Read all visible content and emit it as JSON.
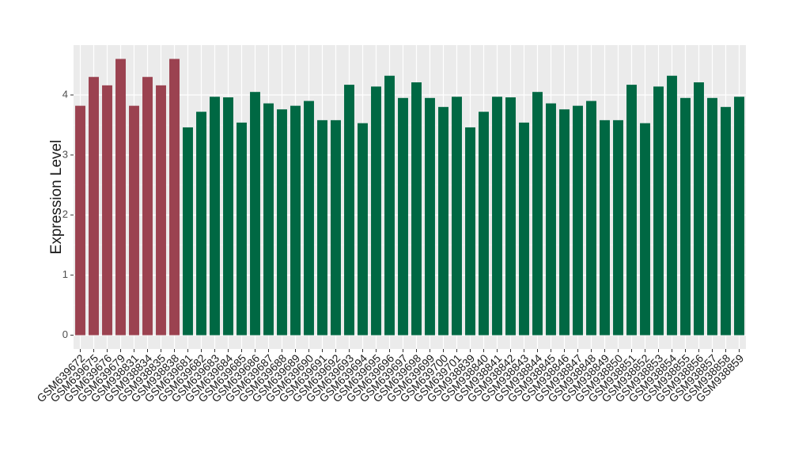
{
  "chart_data": {
    "type": "bar",
    "y_label": "Expression Level",
    "categories": [
      "GSM639672",
      "GSM639675",
      "GSM639676",
      "GSM639679",
      "GSM938831",
      "GSM938834",
      "GSM938835",
      "GSM938838",
      "GSM639681",
      "GSM639682",
      "GSM639683",
      "GSM639684",
      "GSM639685",
      "GSM639686",
      "GSM639687",
      "GSM639688",
      "GSM639689",
      "GSM639690",
      "GSM639691",
      "GSM639692",
      "GSM639693",
      "GSM639694",
      "GSM639695",
      "GSM639696",
      "GSM639697",
      "GSM639698",
      "GSM639699",
      "GSM639700",
      "GSM639701",
      "GSM938839",
      "GSM938840",
      "GSM938841",
      "GSM938842",
      "GSM938843",
      "GSM938844",
      "GSM938845",
      "GSM938846",
      "GSM938847",
      "GSM938848",
      "GSM938849",
      "GSM938850",
      "GSM938851",
      "GSM938852",
      "GSM938853",
      "GSM938854",
      "GSM938855",
      "GSM938856",
      "GSM938857",
      "GSM938858",
      "GSM938859"
    ],
    "values": [
      3.82,
      4.3,
      4.16,
      4.6,
      3.82,
      4.3,
      4.16,
      4.6,
      3.46,
      3.72,
      3.97,
      3.96,
      3.54,
      4.05,
      3.86,
      3.76,
      3.82,
      3.9,
      3.58,
      3.58,
      4.17,
      3.53,
      4.14,
      4.32,
      3.95,
      4.21,
      3.95,
      3.8,
      3.97,
      3.46,
      3.72,
      3.97,
      3.96,
      3.54,
      4.05,
      3.86,
      3.76,
      3.82,
      3.9,
      3.58,
      3.58,
      4.17,
      3.53,
      4.14,
      4.32,
      3.95,
      4.21,
      3.95,
      3.8,
      3.97
    ],
    "colors": [
      "#9b4250",
      "#9b4250",
      "#9b4250",
      "#9b4250",
      "#9b4250",
      "#9b4250",
      "#9b4250",
      "#9b4250",
      "#006843",
      "#006843",
      "#006843",
      "#006843",
      "#006843",
      "#006843",
      "#006843",
      "#006843",
      "#006843",
      "#006843",
      "#006843",
      "#006843",
      "#006843",
      "#006843",
      "#006843",
      "#006843",
      "#006843",
      "#006843",
      "#006843",
      "#006843",
      "#006843",
      "#006843",
      "#006843",
      "#006843",
      "#006843",
      "#006843",
      "#006843",
      "#006843",
      "#006843",
      "#006843",
      "#006843",
      "#006843",
      "#006843",
      "#006843",
      "#006843",
      "#006843",
      "#006843",
      "#006843",
      "#006843",
      "#006843",
      "#006843",
      "#006843"
    ],
    "ylim": [
      -0.23,
      4.83
    ],
    "yticks": [
      0,
      1,
      2,
      3,
      4
    ],
    "grid": true
  }
}
